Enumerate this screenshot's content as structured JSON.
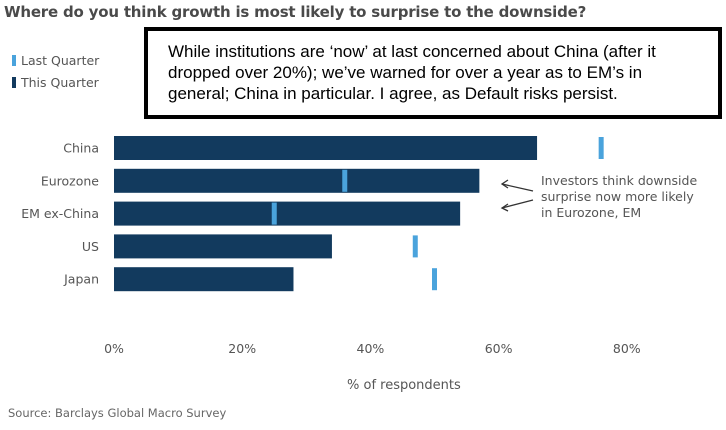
{
  "title": "Where do you think growth is most likely to surprise to the downside?",
  "legend": [
    {
      "label": "Last Quarter",
      "color": "#4aa3dc"
    },
    {
      "label": "This Quarter",
      "color": "#123a5e"
    }
  ],
  "note": "While institutions are ‘now’ at last concerned about China (after it dropped over 20%); we’ve warned for over a year as to EM’s in general; China in particular. I agree, as Default risks persist.",
  "annotation": "Investors think downside\nsurprise now more likely\nin Eurozone, EM",
  "source": "Source: Barclays Global Macro Survey",
  "chart_data": {
    "type": "bar",
    "orientation": "horizontal",
    "title": "Where do you think growth is most likely to surprise to the downside?",
    "categories": [
      "China",
      "Eurozone",
      "EM ex-China",
      "US",
      "Japan"
    ],
    "series": [
      {
        "name": "This Quarter",
        "style": "bar",
        "color": "#123a5e",
        "values": [
          66,
          57,
          54,
          34,
          28
        ]
      },
      {
        "name": "Last Quarter",
        "style": "marker",
        "color": "#4aa3dc",
        "values": [
          76,
          36,
          25,
          47,
          50
        ]
      }
    ],
    "xlabel": "% of respondents",
    "ylabel": "",
    "xlim": [
      0,
      80
    ],
    "xticks": [
      "0%",
      "20%",
      "40%",
      "60%",
      "80%"
    ],
    "grid": false,
    "legend_position": "top-left",
    "annotations": [
      "Investors think downside surprise now more likely in Eurozone, EM"
    ]
  }
}
